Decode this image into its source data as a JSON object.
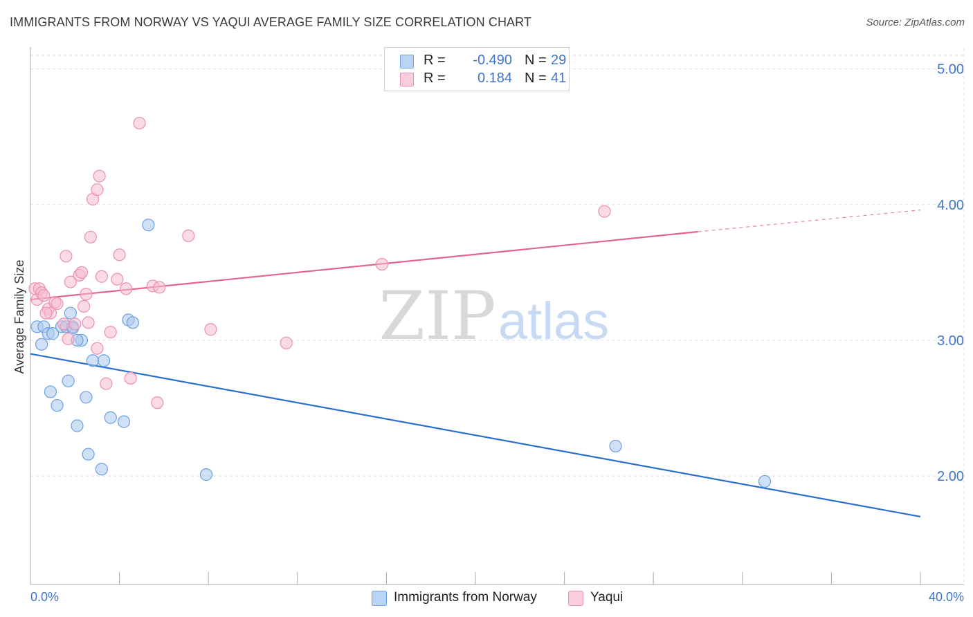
{
  "header": {
    "title": "IMMIGRANTS FROM NORWAY VS YAQUI AVERAGE FAMILY SIZE CORRELATION CHART",
    "source": "Source: ZipAtlas.com"
  },
  "legend": {
    "rows": [
      {
        "r_label": "R =",
        "r_value": "-0.490",
        "n_label": "N =",
        "n_value": "29"
      },
      {
        "r_label": "R =",
        "r_value": "0.184",
        "n_label": "N =",
        "n_value": "41"
      }
    ]
  },
  "watermark": {
    "zip": "ZIP",
    "atlas": "atlas"
  },
  "colors": {
    "norway_fill": "#a9c8f0",
    "norway_stroke": "#6a9fe0",
    "norway_line": "#2a6fd0",
    "yaqui_fill": "#f6bcd0",
    "yaqui_stroke": "#eb8fb0",
    "yaqui_line": "#e2658f",
    "tick_text": "#3f74c8",
    "grid": "#dddddd"
  },
  "chart_data": {
    "type": "scatter",
    "title": "IMMIGRANTS FROM NORWAY VS YAQUI AVERAGE FAMILY SIZE CORRELATION CHART",
    "xlabel": "",
    "ylabel": "Average Family Size",
    "xlim": [
      0,
      40
    ],
    "ylim": [
      1.2,
      5.1
    ],
    "x_tick_labels": [
      "0.0%",
      "40.0%"
    ],
    "y_ticks": [
      2.0,
      3.0,
      4.0,
      5.0
    ],
    "y_tick_labels": [
      "2.00",
      "3.00",
      "4.00",
      "5.00"
    ],
    "grid": true,
    "legend_position": "top-center",
    "series": [
      {
        "name": "Immigrants from Norway",
        "r": -0.49,
        "n": 29,
        "trend": {
          "x": [
            0,
            40
          ],
          "y": [
            2.9,
            1.7
          ]
        },
        "points": [
          [
            0.3,
            3.1
          ],
          [
            0.6,
            3.1
          ],
          [
            0.8,
            3.05
          ],
          [
            1.0,
            3.05
          ],
          [
            1.4,
            3.1
          ],
          [
            1.6,
            3.1
          ],
          [
            1.8,
            3.2
          ],
          [
            1.9,
            3.1
          ],
          [
            2.3,
            3.0
          ],
          [
            0.5,
            2.97
          ],
          [
            0.9,
            2.62
          ],
          [
            1.2,
            2.52
          ],
          [
            1.7,
            2.7
          ],
          [
            2.1,
            3.0
          ],
          [
            2.5,
            2.58
          ],
          [
            2.8,
            2.85
          ],
          [
            3.3,
            2.85
          ],
          [
            3.6,
            2.43
          ],
          [
            4.2,
            2.4
          ],
          [
            4.4,
            3.15
          ],
          [
            4.6,
            3.13
          ],
          [
            5.3,
            3.85
          ],
          [
            2.1,
            2.37
          ],
          [
            2.6,
            2.16
          ],
          [
            3.2,
            2.05
          ],
          [
            7.9,
            2.01
          ],
          [
            26.3,
            2.22
          ],
          [
            33.0,
            1.96
          ],
          [
            1.9,
            3.09
          ]
        ]
      },
      {
        "name": "Yaqui",
        "r": 0.184,
        "n": 41,
        "trend": {
          "x": [
            0,
            30
          ],
          "y": [
            3.3,
            3.8
          ]
        },
        "trend_dashed": {
          "x": [
            30,
            40
          ],
          "y": [
            3.8,
            3.96
          ]
        },
        "points": [
          [
            0.2,
            3.38
          ],
          [
            0.3,
            3.3
          ],
          [
            0.4,
            3.38
          ],
          [
            0.5,
            3.35
          ],
          [
            0.6,
            3.33
          ],
          [
            0.8,
            3.23
          ],
          [
            0.9,
            3.2
          ],
          [
            1.1,
            3.28
          ],
          [
            1.2,
            3.27
          ],
          [
            1.5,
            3.12
          ],
          [
            1.6,
            3.62
          ],
          [
            1.8,
            3.43
          ],
          [
            2.0,
            3.12
          ],
          [
            2.2,
            3.48
          ],
          [
            2.3,
            3.5
          ],
          [
            2.4,
            3.25
          ],
          [
            2.5,
            3.34
          ],
          [
            2.6,
            3.13
          ],
          [
            2.7,
            3.76
          ],
          [
            2.8,
            4.04
          ],
          [
            3.0,
            4.11
          ],
          [
            3.1,
            4.21
          ],
          [
            3.2,
            3.47
          ],
          [
            3.4,
            2.68
          ],
          [
            3.6,
            3.06
          ],
          [
            3.9,
            3.45
          ],
          [
            4.0,
            3.63
          ],
          [
            4.3,
            3.38
          ],
          [
            4.5,
            2.72
          ],
          [
            4.9,
            4.6
          ],
          [
            5.5,
            3.4
          ],
          [
            5.7,
            2.54
          ],
          [
            5.8,
            3.39
          ],
          [
            7.1,
            3.77
          ],
          [
            8.1,
            3.08
          ],
          [
            11.5,
            2.98
          ],
          [
            15.8,
            3.56
          ],
          [
            25.8,
            3.95
          ],
          [
            1.7,
            3.01
          ],
          [
            3.0,
            2.94
          ],
          [
            0.7,
            3.2
          ]
        ]
      }
    ]
  },
  "bottom_legend": {
    "norway_label": "Immigrants from Norway",
    "yaqui_label": "Yaqui"
  }
}
